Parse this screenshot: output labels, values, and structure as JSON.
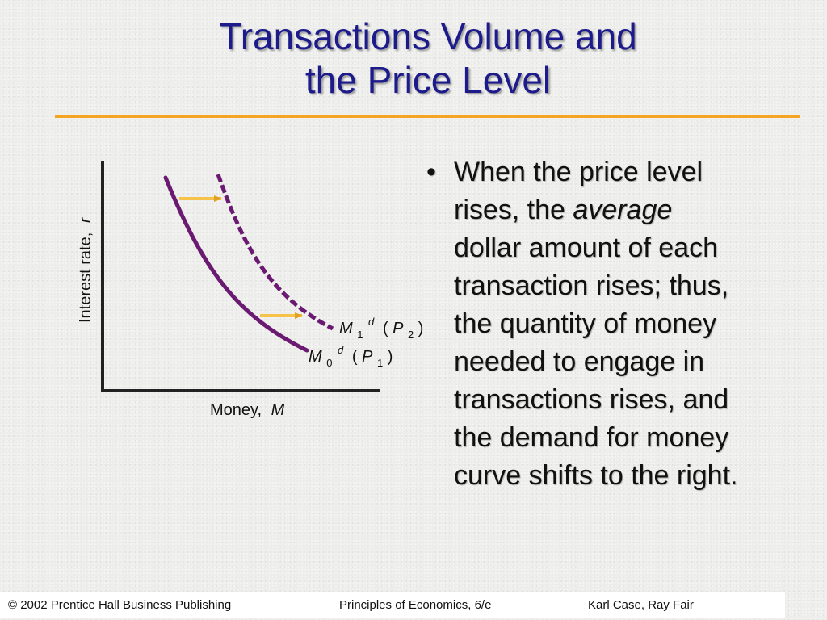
{
  "slide": {
    "title_line1": "Transactions Volume and",
    "title_line2": "the Price Level",
    "accent_color": "#f4a623",
    "title_color": "#1d1b8c"
  },
  "diagram": {
    "y_axis_label": "Interest rate,",
    "y_axis_var": "r",
    "x_axis_label": "Money,",
    "x_axis_var": "M",
    "curve1": {
      "symbol": "M",
      "sub": "0",
      "sup": "d",
      "price": "P",
      "price_sub": "1"
    },
    "curve2": {
      "symbol": "M",
      "sub": "1",
      "sup": "d",
      "price": "P",
      "price_sub": "2"
    },
    "curve_color": "#6b1a72",
    "arrow_color": "#f6c24a"
  },
  "bullet": {
    "symbol": "•",
    "line1": "When the price level",
    "line2_a": "rises, the ",
    "line2_em": "average",
    "line3": "dollar amount of each",
    "line4": "transaction rises; thus,",
    "line5": "the quantity of money",
    "line6": "needed to engage in",
    "line7": "transactions rises, and",
    "line8": "the demand for money",
    "line9": "curve shifts to the right."
  },
  "footer": {
    "left": "© 2002 Prentice Hall Business Publishing",
    "center": "Principles of Economics, 6/e",
    "right": "Karl Case, Ray Fair"
  }
}
